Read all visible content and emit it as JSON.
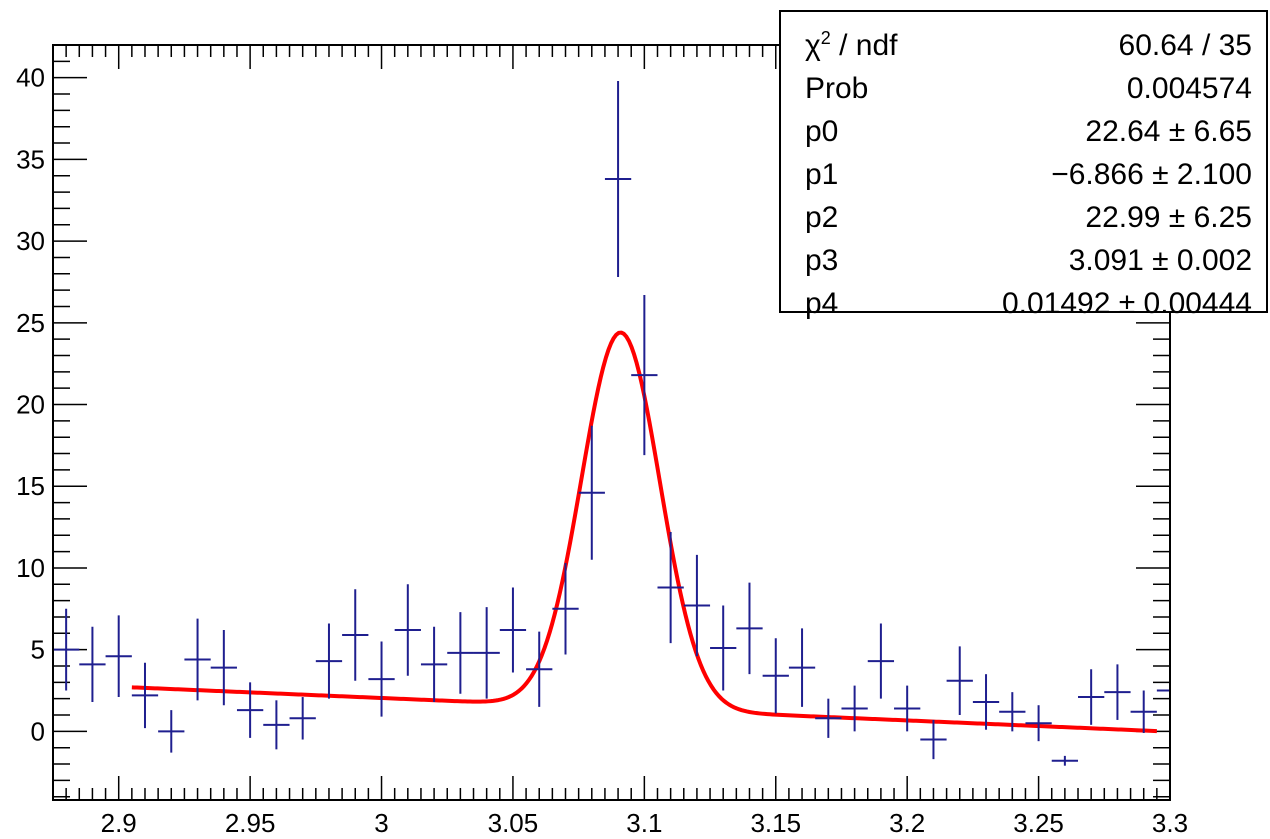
{
  "chart_data": {
    "type": "scatter",
    "title": "",
    "xlabel": "",
    "ylabel": "",
    "xlim": [
      2.875,
      3.3
    ],
    "ylim": [
      -4.2,
      42
    ],
    "x_ticks": [
      2.9,
      2.95,
      3.0,
      3.05,
      3.1,
      3.15,
      3.2,
      3.25,
      3.3
    ],
    "x_tick_labels": [
      "2.9",
      "2.95",
      "3",
      "3.05",
      "3.1",
      "3.15",
      "3.2",
      "3.25",
      "3.3"
    ],
    "y_ticks": [
      0,
      5,
      10,
      15,
      20,
      25,
      30,
      35,
      40
    ],
    "y_tick_labels": [
      "0",
      "5",
      "10",
      "15",
      "20",
      "25",
      "30",
      "35",
      "40"
    ],
    "grid": false,
    "series": [
      {
        "kind": "points-with-errors",
        "color": "#1f1f8f",
        "x": [
          2.88,
          2.89,
          2.9,
          2.91,
          2.92,
          2.93,
          2.94,
          2.95,
          2.96,
          2.97,
          2.98,
          2.99,
          3.0,
          3.01,
          3.02,
          3.03,
          3.04,
          3.05,
          3.06,
          3.07,
          3.08,
          3.09,
          3.1,
          3.11,
          3.12,
          3.13,
          3.14,
          3.15,
          3.16,
          3.17,
          3.18,
          3.19,
          3.2,
          3.21,
          3.22,
          3.23,
          3.24,
          3.25,
          3.26,
          3.27,
          3.28,
          3.29,
          3.3
        ],
        "y": [
          5.0,
          4.1,
          4.6,
          2.2,
          0.0,
          4.4,
          3.9,
          1.3,
          0.4,
          0.8,
          4.3,
          5.9,
          3.2,
          6.2,
          4.1,
          4.8,
          4.8,
          6.2,
          3.8,
          7.5,
          14.6,
          33.8,
          21.8,
          8.8,
          7.7,
          5.1,
          6.3,
          3.4,
          3.9,
          0.8,
          1.4,
          4.3,
          1.4,
          -0.5,
          3.1,
          1.8,
          1.2,
          0.5,
          -1.8,
          2.1,
          2.4,
          1.2,
          2.5
        ],
        "yerr": [
          2.5,
          2.3,
          2.5,
          2.0,
          1.3,
          2.5,
          2.3,
          1.7,
          1.5,
          1.3,
          2.3,
          2.8,
          2.3,
          2.8,
          2.3,
          2.5,
          2.8,
          2.6,
          2.3,
          2.8,
          4.1,
          6.0,
          4.9,
          3.4,
          3.1,
          2.6,
          2.8,
          2.3,
          2.4,
          1.2,
          1.4,
          2.3,
          1.4,
          1.2,
          2.1,
          1.7,
          1.2,
          1.1,
          0.3,
          1.7,
          1.7,
          1.3,
          1.8
        ],
        "xerr": 0.005
      },
      {
        "kind": "fit-curve",
        "color": "#ff0000",
        "function": "p0 + p1*x + p2*exp(-0.5*((x-p3)/p4)^2)",
        "params": {
          "p0": 22.64,
          "p1": -6.866,
          "p2": 22.99,
          "p3": 3.091,
          "p4": 0.01492
        },
        "xrange": [
          2.905,
          3.295
        ]
      }
    ]
  },
  "stats": [
    {
      "name_prefix": "χ",
      "name_sup": "2",
      "name_suffix": " / ndf",
      "value": "60.64 / 35"
    },
    {
      "name": "Prob",
      "value": "0.004574"
    },
    {
      "name": "p0",
      "value": "22.64 ± 6.65"
    },
    {
      "name": "p1",
      "value": "−6.866 ± 2.100"
    },
    {
      "name": "p2",
      "value": "22.99 ± 6.25"
    },
    {
      "name": "p3",
      "value": "3.091 ± 0.002"
    },
    {
      "name": "p4",
      "value": "0.01492 ± 0.00444"
    }
  ]
}
